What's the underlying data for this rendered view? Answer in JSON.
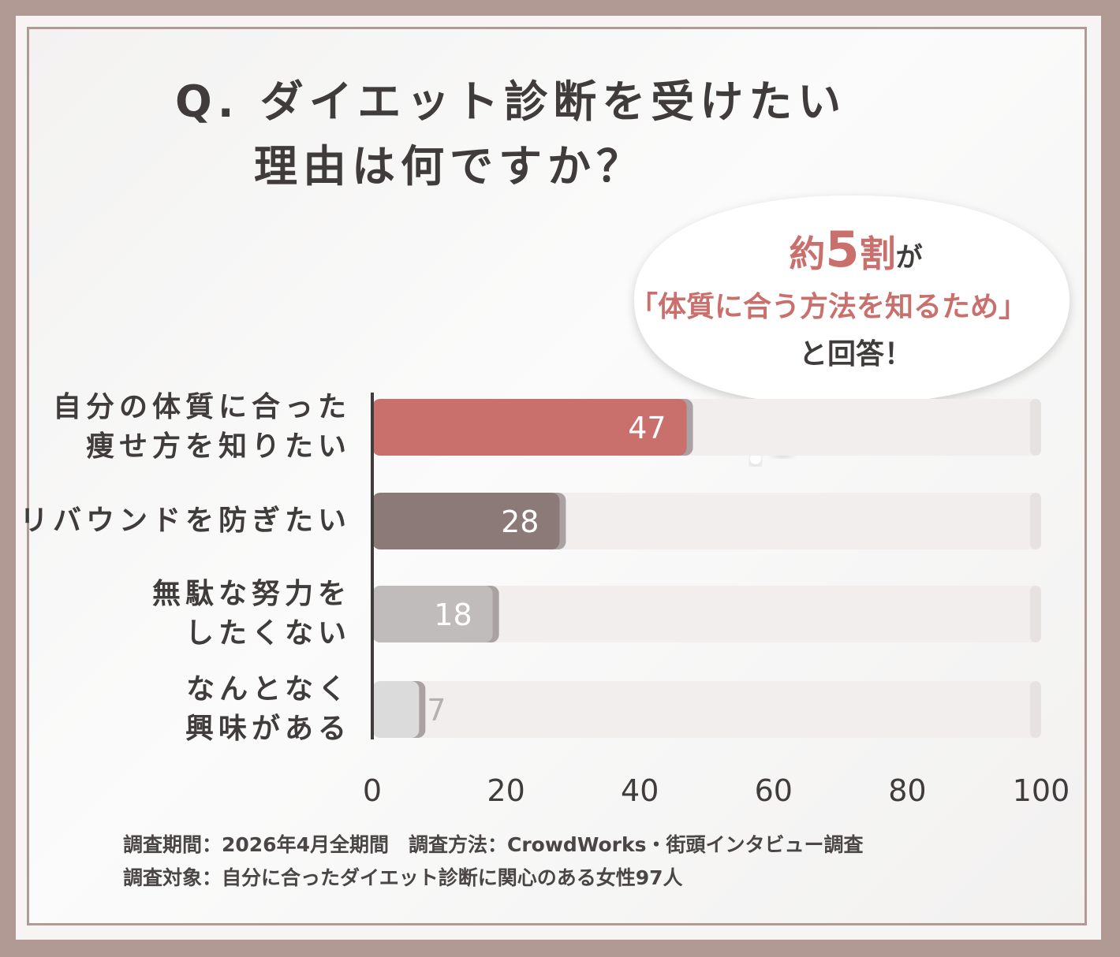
{
  "title": {
    "line1": "Q. ダイエット診断を受けたい",
    "line2": "理由は何ですか？"
  },
  "callout": {
    "part_a": "約",
    "part_b": "5",
    "part_c": "割",
    "part_d": "が",
    "line2": "「体質に合う方法を知るため」",
    "line3": "と回答！"
  },
  "chart_data": {
    "type": "bar",
    "orientation": "horizontal",
    "categories": [
      [
        "自分の体質に合った",
        "痩せ方を知りたい"
      ],
      [
        "リバウンドを防ぎたい"
      ],
      [
        "無駄な努力を",
        "したくない"
      ],
      [
        "なんとなく",
        "興味がある"
      ]
    ],
    "values": [
      47,
      28,
      18,
      7
    ],
    "xlim": [
      0,
      100
    ],
    "xticks": [
      "0",
      "20",
      "40",
      "60",
      "80",
      "100"
    ],
    "grid": false,
    "colors": [
      "#c9706d",
      "#8b7a77",
      "#bfbcbb",
      "#dcdbdb"
    ],
    "label_colors": [
      "#ffffff",
      "#ffffff",
      "#ffffff",
      "#b4b1b0"
    ],
    "track_color": "#f1eeed"
  },
  "footer": {
    "line1": "調査期間：2026年4月全期間　調査方法：CrowdWorks・街頭インタビュー調査",
    "line2": "調査対象：自分に合ったダイエット診断に関心のある女性97人"
  }
}
